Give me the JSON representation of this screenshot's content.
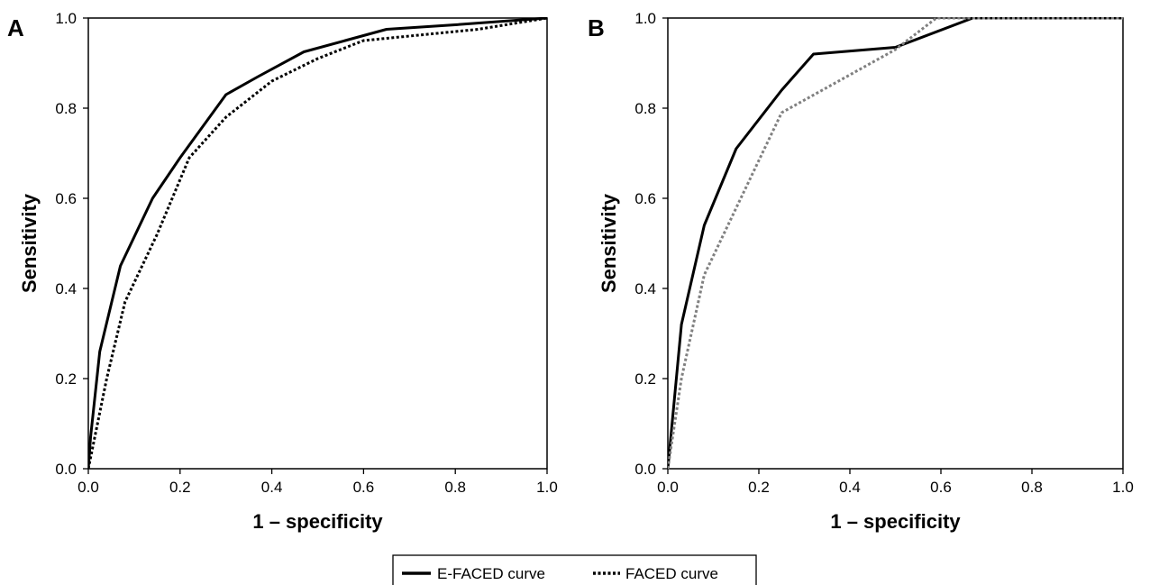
{
  "legend": {
    "items": [
      {
        "label": "E-FACED curve",
        "style": "solid"
      },
      {
        "label": "FACED curve",
        "style": "dotted"
      }
    ]
  },
  "chart_data": [
    {
      "type": "line",
      "panel_label": "A",
      "xlabel": "1 – specificity",
      "ylabel": "Sensitivity",
      "xlim": [
        0,
        1
      ],
      "ylim": [
        0,
        1
      ],
      "xticks": [
        "0.0",
        "0.2",
        "0.4",
        "0.6",
        "0.8",
        "1.0"
      ],
      "yticks": [
        "0.0",
        "0.2",
        "0.4",
        "0.6",
        "0.8",
        "1.0"
      ],
      "grid": false,
      "series": [
        {
          "name": "E-FACED curve",
          "style": "solid",
          "color": "#000000",
          "x": [
            0,
            0.005,
            0.025,
            0.07,
            0.14,
            0.2,
            0.3,
            0.37,
            0.47,
            0.56,
            0.65,
            0.8,
            1.0
          ],
          "y": [
            0,
            0.07,
            0.26,
            0.45,
            0.6,
            0.69,
            0.83,
            0.87,
            0.925,
            0.95,
            0.975,
            0.985,
            1.0
          ]
        },
        {
          "name": "FACED curve",
          "style": "dotted",
          "color": "#000000",
          "x": [
            0,
            0.01,
            0.04,
            0.08,
            0.15,
            0.22,
            0.3,
            0.4,
            0.5,
            0.6,
            0.7,
            0.85,
            1.0
          ],
          "y": [
            0,
            0.05,
            0.2,
            0.37,
            0.52,
            0.69,
            0.78,
            0.86,
            0.91,
            0.95,
            0.96,
            0.975,
            1.0
          ]
        }
      ]
    },
    {
      "type": "line",
      "panel_label": "B",
      "xlabel": "1 – specificity",
      "ylabel": "Sensitivity",
      "xlim": [
        0,
        1
      ],
      "ylim": [
        0,
        1
      ],
      "xticks": [
        "0.0",
        "0.2",
        "0.4",
        "0.6",
        "0.8",
        "1.0"
      ],
      "yticks": [
        "0.0",
        "0.2",
        "0.4",
        "0.6",
        "0.8",
        "1.0"
      ],
      "grid": false,
      "series": [
        {
          "name": "E-FACED curve",
          "style": "solid",
          "color": "#000000",
          "x": [
            0,
            0.03,
            0.08,
            0.15,
            0.25,
            0.32,
            0.5,
            0.67,
            1.0
          ],
          "y": [
            0,
            0.32,
            0.54,
            0.71,
            0.84,
            0.92,
            0.935,
            1.0,
            1.0
          ]
        },
        {
          "name": "FACED curve",
          "style": "dotted",
          "color": "#808080",
          "x": [
            0,
            0.03,
            0.08,
            0.25,
            0.5,
            0.59,
            1.0
          ],
          "y": [
            0,
            0.2,
            0.43,
            0.79,
            0.93,
            1.0,
            1.0
          ]
        }
      ]
    }
  ]
}
